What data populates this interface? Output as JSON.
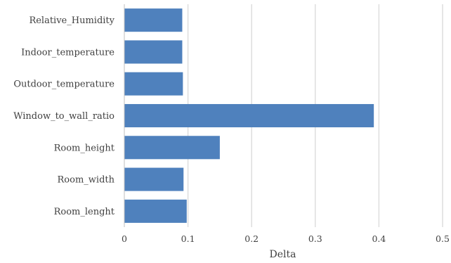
{
  "chart_data": {
    "type": "bar",
    "orientation": "horizontal",
    "categories": [
      "Relative_Humidity",
      "Indoor_temperature",
      "Outdoor_temperature",
      "Window_to_wall_ratio",
      "Room_height",
      "Room_width",
      "Room_lenght"
    ],
    "values": [
      0.091,
      0.091,
      0.092,
      0.392,
      0.15,
      0.093,
      0.098
    ],
    "xlabel": "Delta",
    "ylabel": "",
    "title": "",
    "xlim": [
      0,
      0.5
    ],
    "xticks": [
      "0",
      "0.1",
      "0.2",
      "0.3",
      "0.4",
      "0.5"
    ],
    "grid": "vertical",
    "legend": "none",
    "bar_color": "#4f81bd"
  }
}
